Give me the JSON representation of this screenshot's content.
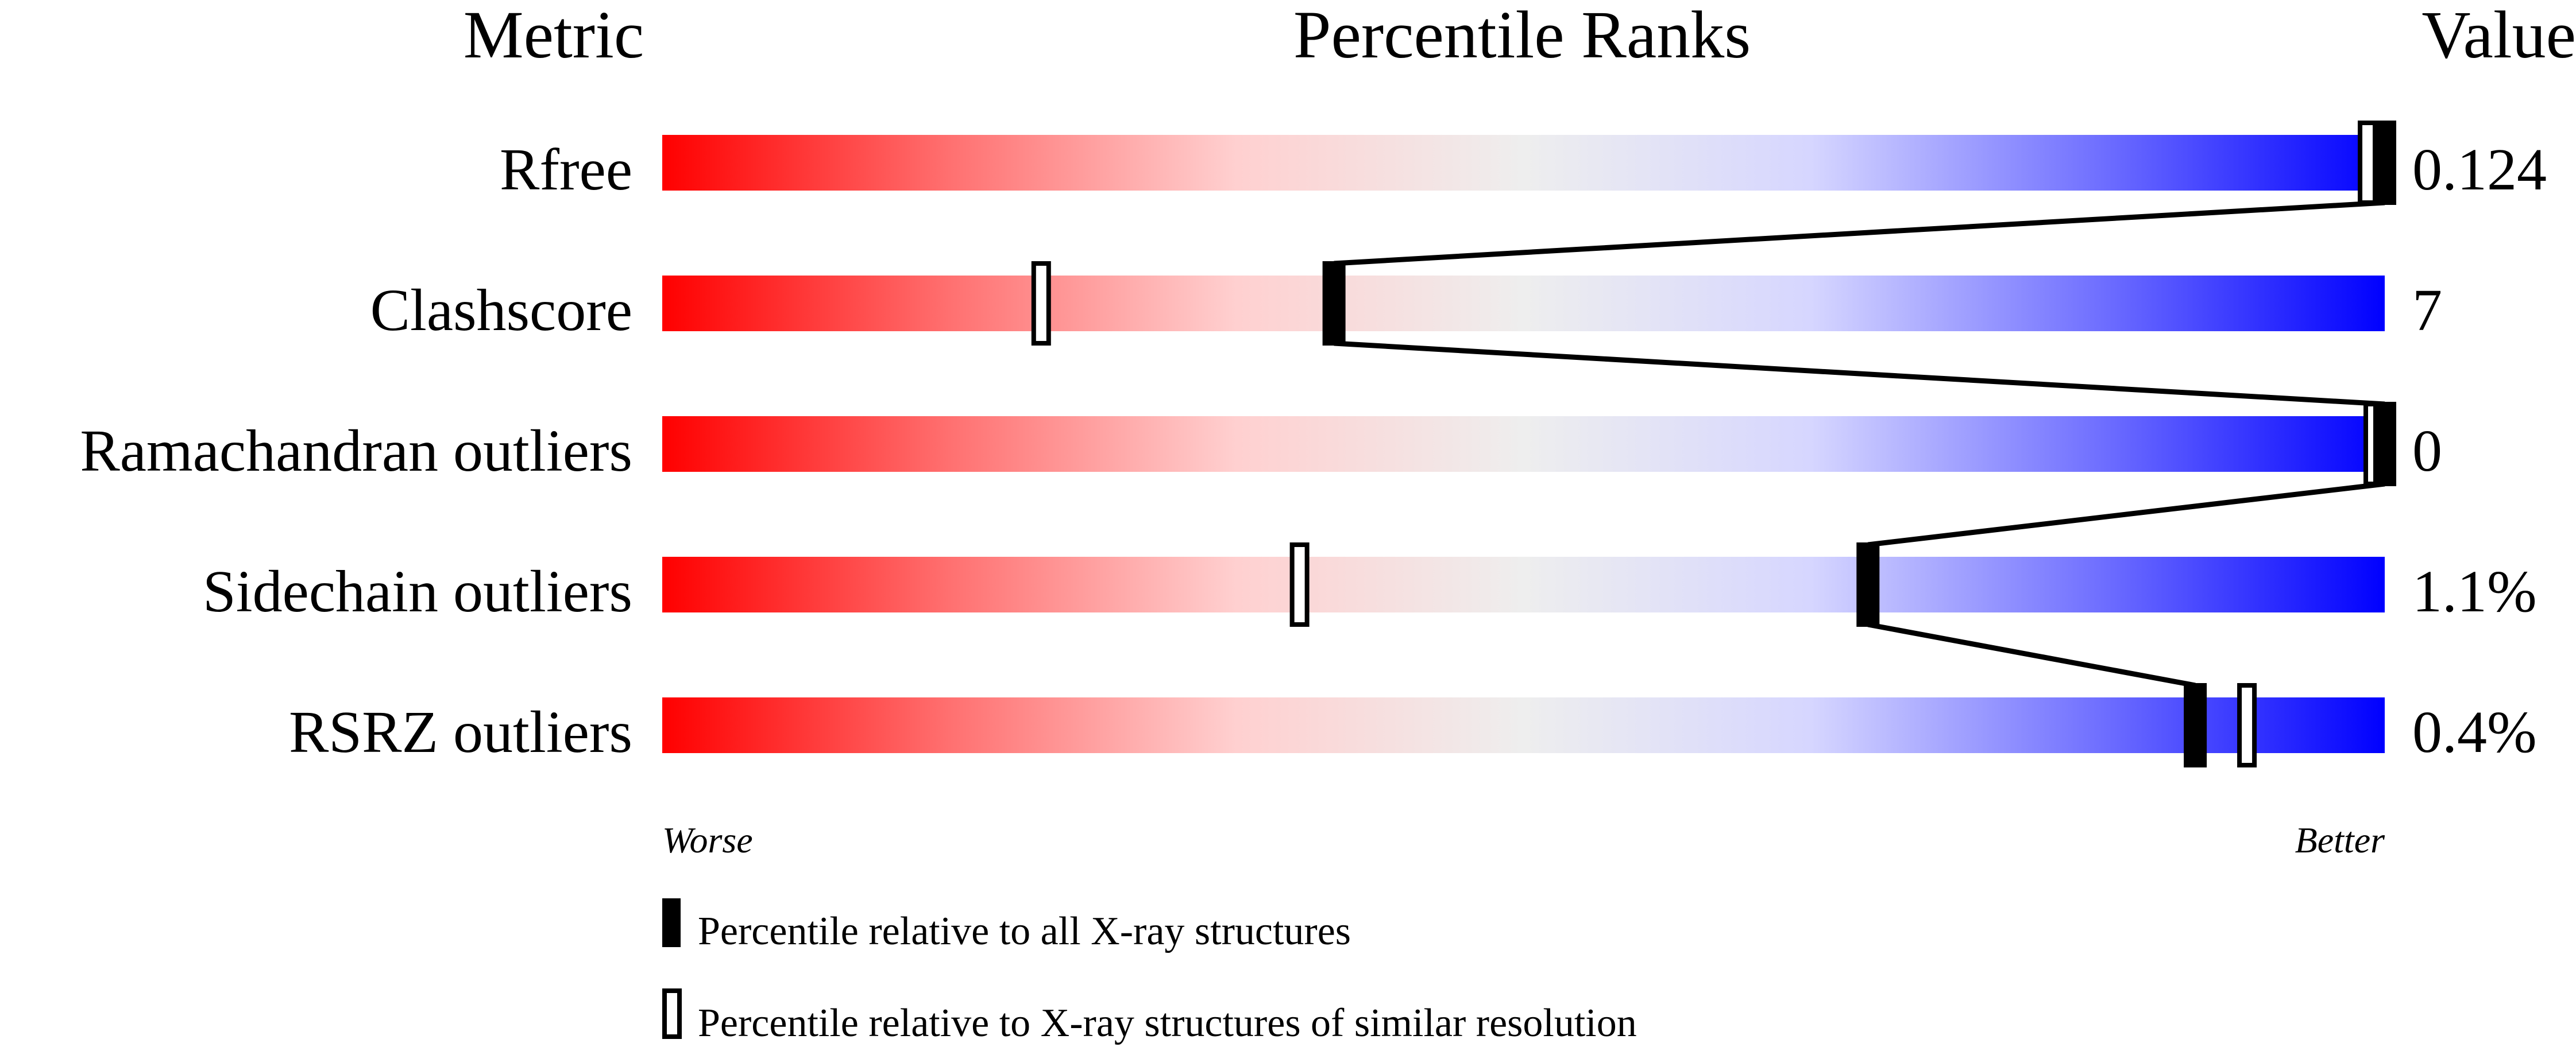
{
  "chart_data": {
    "type": "percentile-bar",
    "headers": {
      "metric": "Metric",
      "ranks": "Percentile Ranks",
      "value": "Value"
    },
    "xlim": [
      0,
      100
    ],
    "scale_labels": {
      "left": "Worse",
      "right": "Better"
    },
    "gradient_colors": [
      "#ff0000",
      "#ff7070",
      "#ffd0d0",
      "#eeeeee",
      "#d6d6ff",
      "#7070ff",
      "#0000ff"
    ],
    "metrics": [
      {
        "name": "Rfree",
        "value": "0.124",
        "percentile_all": 100,
        "percentile_similar": 99
      },
      {
        "name": "Clashscore",
        "value": "7",
        "percentile_all": 39,
        "percentile_similar": 22
      },
      {
        "name": "Ramachandran outliers",
        "value": "0",
        "percentile_all": 100,
        "percentile_similar": 100
      },
      {
        "name": "Sidechain outliers",
        "value": "1.1%",
        "percentile_all": 70,
        "percentile_similar": 37
      },
      {
        "name": "RSRZ outliers",
        "value": "0.4%",
        "percentile_all": 89,
        "percentile_similar": 92
      }
    ],
    "legend": [
      {
        "marker": "filled",
        "label": "Percentile relative to all X-ray structures"
      },
      {
        "marker": "open",
        "label": "Percentile relative to X-ray structures of similar resolution"
      }
    ]
  }
}
